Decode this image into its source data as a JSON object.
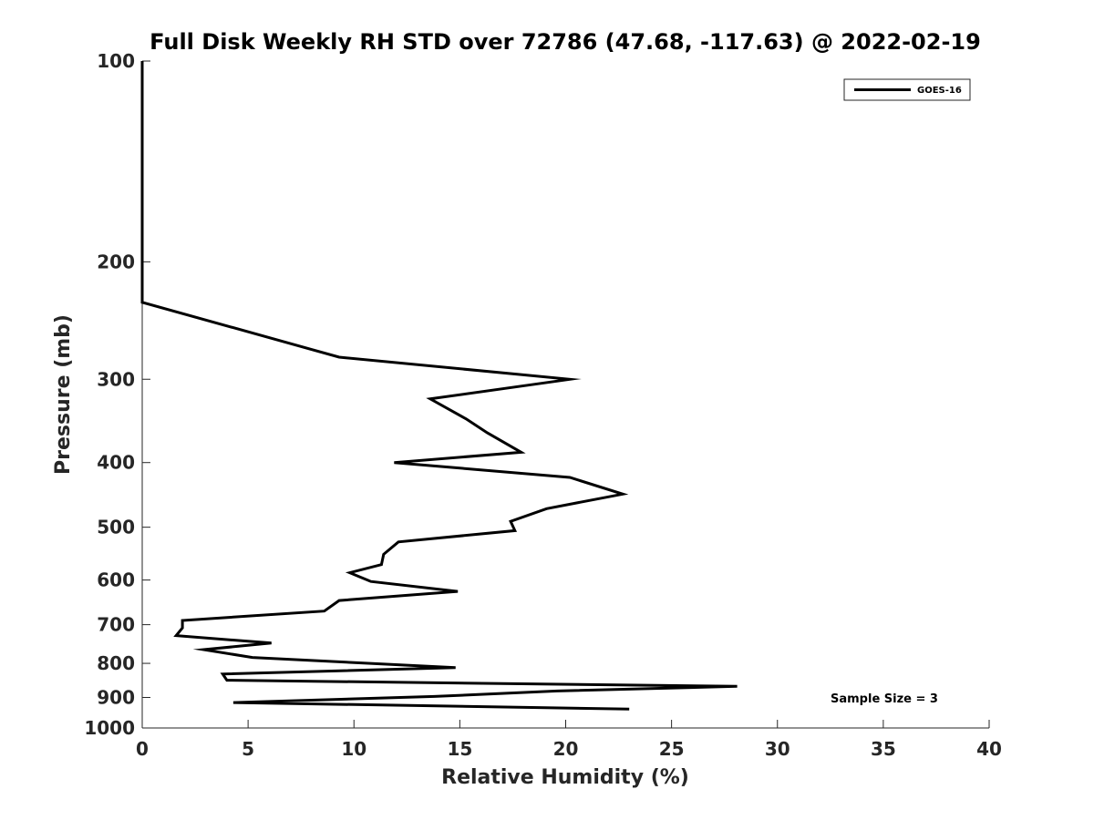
{
  "chart_data": {
    "type": "line",
    "title": "Full Disk Weekly RH STD over 72786 (47.68, -117.63) @ 2022-02-19",
    "xlabel": "Relative Humidity (%)",
    "ylabel": "Pressure (mb)",
    "xlim": [
      0,
      40
    ],
    "ylim": [
      100,
      1000
    ],
    "y_scale": "log",
    "y_reversed": true,
    "grid": false,
    "x_ticks": [
      0,
      5,
      10,
      15,
      20,
      25,
      30,
      35,
      40
    ],
    "x_tick_labels": [
      "0",
      "5",
      "10",
      "15",
      "20",
      "25",
      "30",
      "35",
      "40"
    ],
    "y_ticks": [
      100,
      200,
      300,
      400,
      500,
      600,
      700,
      800,
      900,
      1000
    ],
    "y_tick_labels": [
      "100",
      "200",
      "300",
      "400",
      "500",
      "600",
      "700",
      "800",
      "900",
      "1000"
    ],
    "legend": {
      "position": "top-right",
      "entries": [
        "GOES-16"
      ]
    },
    "annotations": [
      {
        "text": "Sample Size = 3",
        "position": "bottom-right"
      }
    ],
    "series": [
      {
        "name": "GOES-16",
        "color": "#000000",
        "x": [
          0.0,
          0.0,
          0.0,
          0.0,
          0.0,
          0.0,
          9.3,
          20.2,
          13.6,
          15.3,
          16.3,
          17.9,
          11.9,
          20.2,
          22.7,
          19.1,
          17.4,
          17.6,
          12.1,
          11.4,
          11.3,
          9.8,
          10.8,
          14.9,
          9.3,
          8.6,
          1.9,
          1.9,
          1.6,
          6.1,
          2.9,
          5.2,
          14.8,
          3.8,
          4.0,
          28.1,
          19.6,
          13.8,
          4.3,
          23.0
        ],
        "y": [
          100,
          120,
          150,
          180,
          200,
          230,
          278,
          300,
          321,
          344,
          361,
          386,
          400,
          421,
          446,
          469,
          490,
          506,
          526,
          549,
          569,
          585,
          603,
          624,
          644,
          668,
          690,
          708,
          727,
          746,
          763,
          784,
          812,
          830,
          848,
          866,
          880,
          897,
          916,
          937
        ]
      }
    ]
  }
}
